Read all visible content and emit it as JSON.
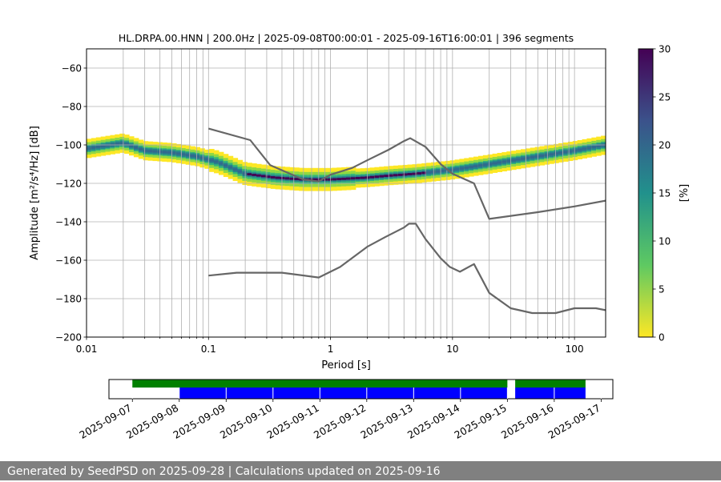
{
  "chart_data": [
    {
      "type": "heatmap",
      "title": "HL.DRPA.00.HNN | 200.0Hz | 2025-09-08T00:00:01 - 2025-09-16T16:00:01 | 396 segments",
      "xlabel": "Period [s]",
      "ylabel": "Amplitude [m²/s⁴/Hz] [dB]",
      "x_scale": "log",
      "xlim": [
        0.01,
        180
      ],
      "ylim": [
        -200,
        -50
      ],
      "x_tick_labels": [
        "0.01",
        "0.1",
        "1",
        "10",
        "100"
      ],
      "y_tick_labels": [
        "−60",
        "−80",
        "−100",
        "−120",
        "−140",
        "−160",
        "−180",
        "−200"
      ],
      "grid": true,
      "colorbar": {
        "label": "[%]",
        "range": [
          0,
          30
        ],
        "tick_labels": [
          "0",
          "5",
          "10",
          "15",
          "20",
          "25",
          "30"
        ],
        "colormap": "viridis_r"
      },
      "ridge": {
        "description": "mode of PSD density",
        "points": [
          [
            0.01,
            -102
          ],
          [
            0.02,
            -99
          ],
          [
            0.03,
            -103
          ],
          [
            0.05,
            -104
          ],
          [
            0.08,
            -106
          ],
          [
            0.12,
            -109
          ],
          [
            0.2,
            -115
          ],
          [
            0.35,
            -117
          ],
          [
            0.6,
            -118
          ],
          [
            1,
            -118
          ],
          [
            2,
            -117
          ],
          [
            3,
            -116
          ],
          [
            5,
            -115
          ],
          [
            10,
            -113
          ],
          [
            20,
            -110
          ],
          [
            50,
            -106
          ],
          [
            100,
            -103
          ],
          [
            180,
            -100
          ]
        ]
      },
      "series": [
        {
          "name": "",
          "x": [
            0.1,
            0.22,
            0.32,
            0.6,
            0.8,
            1.0,
            1.5,
            2,
            3,
            4,
            4.5,
            6,
            8,
            10,
            15,
            20,
            50,
            100,
            180
          ],
          "y": [
            -91.5,
            -97.5,
            -110.5,
            -118,
            -119,
            -115.5,
            -112,
            -108,
            -102.5,
            -98,
            -96.5,
            -101,
            -110,
            -115,
            -120,
            -138.5,
            -135,
            -132,
            -129
          ],
          "color": "#666666"
        },
        {
          "name": "",
          "x": [
            0.1,
            0.17,
            0.4,
            0.8,
            1.2,
            2.0,
            2.8,
            4.0,
            4.4,
            5.0,
            6.0,
            8.0,
            9.5,
            11.5,
            15,
            20,
            30,
            45,
            70,
            100,
            150,
            180
          ],
          "y": [
            -168,
            -166.5,
            -166.5,
            -169,
            -163.5,
            -153,
            -148,
            -143,
            -141,
            -141,
            -149,
            -159,
            -163.5,
            -166,
            -162,
            -177,
            -185,
            -187.5,
            -187.5,
            -185,
            -185,
            -186
          ],
          "color": "#666666"
        }
      ]
    },
    {
      "type": "timeline",
      "x_tick_labels": [
        "2025-09-07",
        "2025-09-08",
        "2025-09-09",
        "2025-09-10",
        "2025-09-11",
        "2025-09-12",
        "2025-09-13",
        "2025-09-14",
        "2025-09-15",
        "2025-09-16",
        "2025-09-17"
      ],
      "xlim": [
        "2025-09-06T12:00:00",
        "2025-09-17T06:00:00"
      ],
      "green_segments": [
        [
          "2025-09-07T00:00:00",
          "2025-09-15T00:00:00"
        ],
        [
          "2025-09-15T04:00:00",
          "2025-09-16T16:00:00"
        ]
      ],
      "blue_segments": [
        [
          "2025-09-08T00:00:00",
          "2025-09-15T00:00:00"
        ],
        [
          "2025-09-15T04:00:00",
          "2025-09-16T16:00:00"
        ]
      ],
      "colors": {
        "green": "#008000",
        "blue": "#0000ff"
      }
    }
  ],
  "footer": {
    "text": "Generated by SeedPSD on 2025-09-28 | Calculations updated on 2025-09-16"
  }
}
